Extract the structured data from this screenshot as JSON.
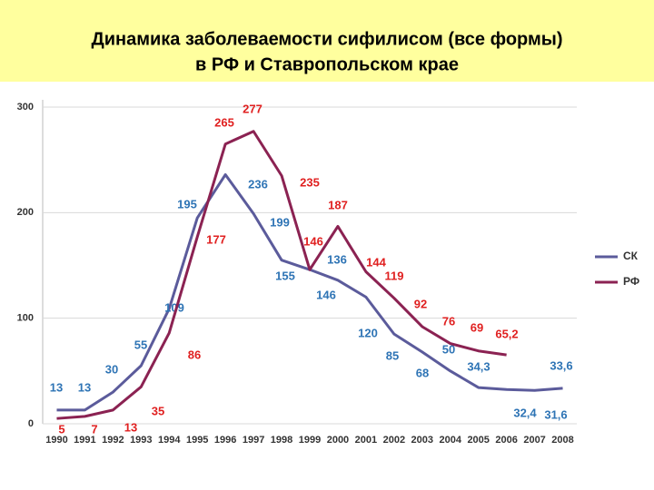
{
  "chart_data": {
    "type": "line",
    "title": "Динамика заболеваемости сифилисом (все формы)",
    "subtitle": "в РФ и Ставропольском крае",
    "categories": [
      "1990",
      "1991",
      "1992",
      "1993",
      "1994",
      "1995",
      "1996",
      "1997",
      "1998",
      "1999",
      "2000",
      "2001",
      "2002",
      "2003",
      "2004",
      "2005",
      "2006",
      "2007",
      "2008"
    ],
    "series": [
      {
        "name": "СК",
        "color": "#5b5b9b",
        "label_color": "#2e74b5",
        "values": [
          13,
          13,
          30,
          55,
          109,
          195,
          236,
          199,
          155,
          146,
          136,
          120,
          85,
          68,
          50,
          34.3,
          32.4,
          31.6,
          33.6
        ],
        "value_labels": [
          "13",
          "13",
          "30",
          "55",
          "109",
          "195",
          "236",
          "199",
          "155",
          "146",
          "136",
          "120",
          "85",
          "68",
          "50",
          "34,3",
          "32,4",
          "31,6",
          "33,6"
        ]
      },
      {
        "name": "РФ",
        "color": "#8b2252",
        "label_color": "#e02020",
        "values": [
          5,
          7,
          13,
          35,
          86,
          177,
          265,
          277,
          235,
          146,
          187,
          144,
          119,
          92,
          76,
          69,
          65.2,
          null,
          null
        ],
        "value_labels": [
          "5",
          "7",
          "13",
          "35",
          "86",
          "177",
          "265",
          "277",
          "235",
          "146",
          "187",
          "144",
          "119",
          "92",
          "76",
          "69",
          "65,2",
          null,
          null
        ]
      }
    ],
    "ylim": [
      0,
      300
    ],
    "yticks": [
      0,
      100,
      200,
      300
    ],
    "grid": true,
    "legend": "right"
  }
}
